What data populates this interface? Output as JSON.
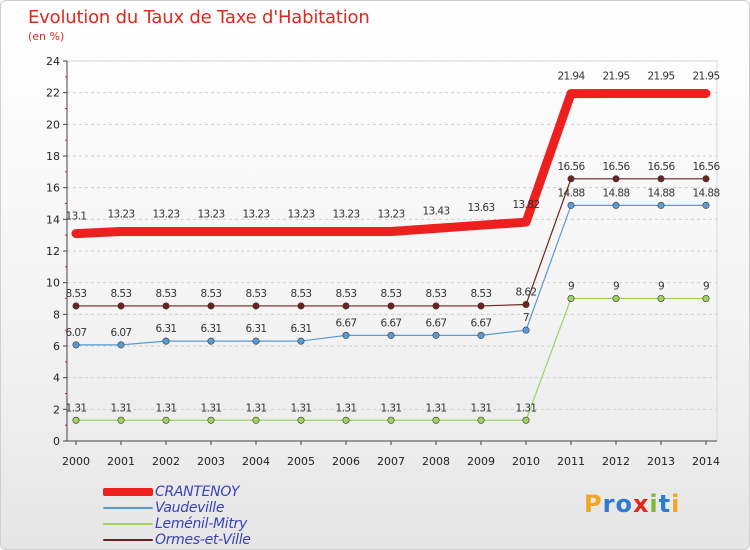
{
  "title": "Evolution du Taux de Taxe d'Habitation",
  "subtitle": "(en %)",
  "logo": {
    "text": "Proxiti",
    "letters": [
      {
        "ch": "P",
        "color": "#f2a51f"
      },
      {
        "ch": "r",
        "color": "#2e7bd6"
      },
      {
        "ch": "o",
        "color": "#2e7bd6"
      },
      {
        "ch": "x",
        "color": "#e0281d"
      },
      {
        "ch": "i",
        "color": "#7ab83a"
      },
      {
        "ch": "t",
        "color": "#2e7bd6"
      },
      {
        "ch": "i",
        "color": "#f2a51f"
      }
    ]
  },
  "chart_data": {
    "type": "line",
    "title": "Evolution du Taux de Taxe d'Habitation",
    "subtitle": "(en %)",
    "xlabel": "",
    "ylabel": "",
    "ylim": [
      0,
      24
    ],
    "yticks": [
      0,
      2,
      4,
      6,
      8,
      10,
      12,
      14,
      16,
      18,
      20,
      22,
      24
    ],
    "grid": true,
    "legend_position": "bottom-left",
    "x": [
      "2000",
      "2001",
      "2002",
      "2003",
      "2004",
      "2005",
      "2006",
      "2007",
      "2008",
      "2009",
      "2010",
      "2011",
      "2012",
      "2013",
      "2014"
    ],
    "series": [
      {
        "name": "CRANTENOY",
        "color": "#ee1f1f",
        "values": [
          13.1,
          13.23,
          13.23,
          13.23,
          13.23,
          13.23,
          13.23,
          13.23,
          13.43,
          13.63,
          13.82,
          21.94,
          21.95,
          21.95,
          21.95
        ],
        "labels": [
          "13.1",
          "13.23",
          "13.23",
          "13.23",
          "13.23",
          "13.23",
          "13.23",
          "13.23",
          "13.43",
          "13.63",
          "13.82",
          "21.94",
          "21.95",
          "21.95",
          "21.95"
        ]
      },
      {
        "name": "Vaudeville",
        "color": "#5b9bd5",
        "values": [
          6.07,
          6.07,
          6.31,
          6.31,
          6.31,
          6.31,
          6.67,
          6.67,
          6.67,
          6.67,
          7,
          14.88,
          14.88,
          14.88,
          14.88
        ],
        "labels": [
          "6.07",
          "6.07",
          "6.31",
          "6.31",
          "6.31",
          "6.31",
          "6.67",
          "6.67",
          "6.67",
          "6.67",
          "7",
          "14.88",
          "14.88",
          "14.88",
          "14.88"
        ]
      },
      {
        "name": "Leménil-Mitry",
        "color": "#9fd35d",
        "values": [
          1.31,
          1.31,
          1.31,
          1.31,
          1.31,
          1.31,
          1.31,
          1.31,
          1.31,
          1.31,
          1.31,
          9,
          9,
          9,
          9
        ],
        "labels": [
          "1.31",
          "1.31",
          "1.31",
          "1.31",
          "1.31",
          "1.31",
          "1.31",
          "1.31",
          "1.31",
          "1.31",
          "1.31",
          "9",
          "9",
          "9",
          "9"
        ]
      },
      {
        "name": "Ormes-et-Ville",
        "color": "#6b2222",
        "values": [
          8.53,
          8.53,
          8.53,
          8.53,
          8.53,
          8.53,
          8.53,
          8.53,
          8.53,
          8.53,
          8.62,
          16.56,
          16.56,
          16.56,
          16.56
        ],
        "labels": [
          "8.53",
          "8.53",
          "8.53",
          "8.53",
          "8.53",
          "8.53",
          "8.53",
          "8.53",
          "8.53",
          "8.53",
          "8.62",
          "16.56",
          "16.56",
          "16.56",
          "16.56"
        ]
      }
    ]
  }
}
